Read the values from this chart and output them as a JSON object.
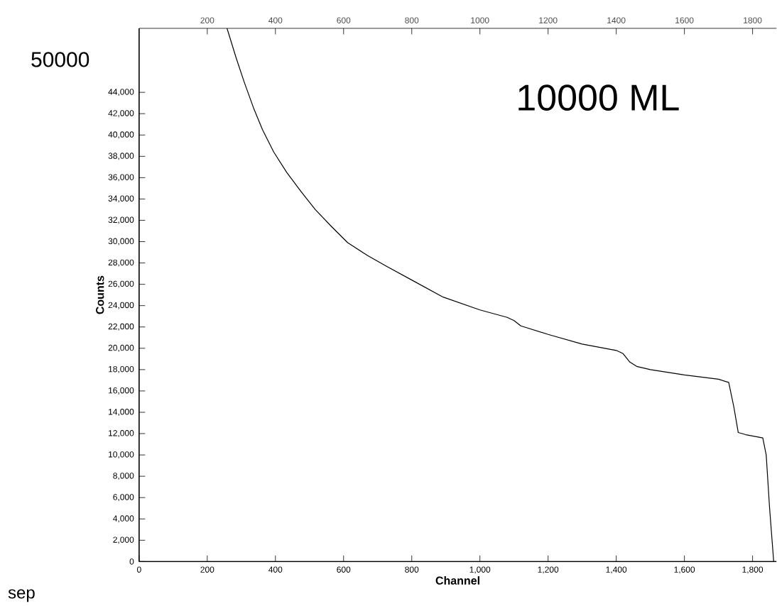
{
  "chart_data": {
    "type": "line",
    "xlabel": "Channel",
    "ylabel": "Counts",
    "annotations": [
      "50000",
      "10000 ML",
      "sep"
    ],
    "xlim": [
      0,
      1870
    ],
    "xticks": [
      0,
      200,
      400,
      600,
      800,
      {
        "value": 1000,
        "label": "1,000"
      },
      {
        "value": 1200,
        "label": "1,200"
      },
      {
        "value": 1400,
        "label": "1,400"
      },
      {
        "value": 1600,
        "label": "1,600"
      },
      {
        "value": 1800,
        "label": "1,800"
      }
    ],
    "x2lim": [
      0,
      1870
    ],
    "x2ticks": [
      200,
      400,
      600,
      800,
      1000,
      1200,
      1400,
      1600,
      1800
    ],
    "ylim": [
      0,
      50000
    ],
    "yticks": [
      0,
      {
        "value": 2000,
        "label": "2,000"
      },
      {
        "value": 4000,
        "label": "4,000"
      },
      {
        "value": 6000,
        "label": "6,000"
      },
      {
        "value": 8000,
        "label": "8,000"
      },
      {
        "value": 10000,
        "label": "10,000"
      },
      {
        "value": 12000,
        "label": "12,000"
      },
      {
        "value": 14000,
        "label": "14,000"
      },
      {
        "value": 16000,
        "label": "16,000"
      },
      {
        "value": 18000,
        "label": "18,000"
      },
      {
        "value": 20000,
        "label": "20,000"
      },
      {
        "value": 22000,
        "label": "22,000"
      },
      {
        "value": 24000,
        "label": "24,000"
      },
      {
        "value": 26000,
        "label": "26,000"
      },
      {
        "value": 28000,
        "label": "28,000"
      },
      {
        "value": 30000,
        "label": "30,000"
      },
      {
        "value": 32000,
        "label": "32,000"
      },
      {
        "value": 34000,
        "label": "34,000"
      },
      {
        "value": 36000,
        "label": "36,000"
      },
      {
        "value": 38000,
        "label": "38,000"
      },
      {
        "value": 40000,
        "label": "40,000"
      },
      {
        "value": 42000,
        "label": "42,000"
      },
      {
        "value": 44000,
        "label": "44,000"
      }
    ],
    "series": [
      {
        "color": "#000000",
        "x": [
          258,
          285,
          308,
          335,
          362,
          395,
          433,
          475,
          517,
          565,
          612,
          670,
          725,
          800,
          892,
          1000,
          1080,
          1100,
          1120,
          1200,
          1300,
          1400,
          1420,
          1440,
          1460,
          1500,
          1600,
          1700,
          1730,
          1745,
          1758,
          1780,
          1830,
          1840,
          1850,
          1862
        ],
        "values": [
          50000,
          47200,
          45000,
          42600,
          40500,
          38400,
          36500,
          34700,
          33000,
          31400,
          29900,
          28700,
          27700,
          26400,
          24800,
          23600,
          22900,
          22600,
          22100,
          21300,
          20400,
          19800,
          19500,
          18700,
          18300,
          18000,
          17500,
          17100,
          16800,
          14500,
          12100,
          11900,
          11600,
          10000,
          5000,
          0
        ]
      }
    ]
  }
}
